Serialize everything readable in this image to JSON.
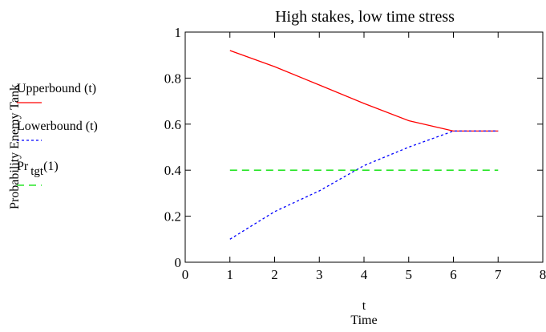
{
  "chart_data": {
    "type": "line",
    "title": "High stakes, low time stress",
    "xlabel_var": "t",
    "xlabel": "Time",
    "ylabel": "Probability Enemy Tank",
    "xlim": [
      0,
      8
    ],
    "ylim": [
      0,
      1
    ],
    "x_ticks": [
      0,
      1,
      2,
      3,
      4,
      5,
      6,
      7,
      8
    ],
    "y_ticks": [
      0,
      0.2,
      0.4,
      0.6,
      0.8,
      1
    ],
    "y_tick_labels": [
      "0",
      "0.2",
      "0.4",
      "0.6",
      "0.8",
      "1"
    ],
    "grid": false,
    "legend_position": "left",
    "series": [
      {
        "name": "Upperbound(t)",
        "name_main": "Upperbound",
        "name_arg": "(t)",
        "color": "#ff0000",
        "style": "solid",
        "x": [
          1,
          2,
          3,
          4,
          5,
          6,
          7
        ],
        "values": [
          0.92,
          0.85,
          0.77,
          0.69,
          0.615,
          0.57,
          0.57
        ]
      },
      {
        "name": "Lowerbound(t)",
        "name_main": "Lowerbound",
        "name_arg": "(t)",
        "color": "#0000ff",
        "style": "dotted",
        "x": [
          1,
          2,
          3,
          4,
          5,
          6,
          7
        ],
        "values": [
          0.1,
          0.22,
          0.31,
          0.42,
          0.5,
          0.57,
          0.57
        ]
      },
      {
        "name": "Pr tgt(1)",
        "name_main": "Pr",
        "name_sub": "tgt",
        "name_arg": "(1)",
        "color": "#00e000",
        "style": "dashed",
        "x": [
          1,
          2,
          3,
          4,
          5,
          6,
          7
        ],
        "values": [
          0.4,
          0.4,
          0.4,
          0.4,
          0.4,
          0.4,
          0.4
        ]
      }
    ]
  }
}
